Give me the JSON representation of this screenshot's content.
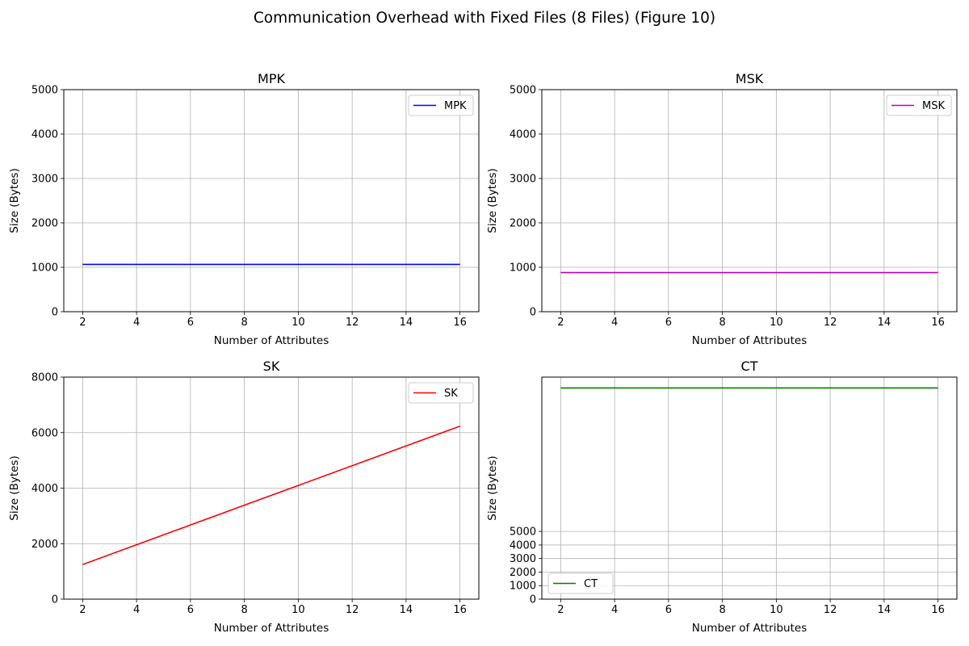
{
  "suptitle": "Communication Overhead with Fixed Files (8 Files) (Figure 10)",
  "chart_data": [
    {
      "type": "line",
      "title": "MPK",
      "xlabel": "Number of Attributes",
      "ylabel": "Size (Bytes)",
      "xlim": [
        1.3,
        16.7
      ],
      "ylim": [
        0,
        5000
      ],
      "xticks": [
        2,
        4,
        6,
        8,
        10,
        12,
        14,
        16
      ],
      "yticks": [
        0,
        1000,
        2000,
        3000,
        4000,
        5000
      ],
      "grid": true,
      "legend_position": "upper right",
      "series": [
        {
          "name": "MPK",
          "color": "#0000ff",
          "x": [
            2,
            4,
            6,
            8,
            10,
            12,
            14,
            16
          ],
          "y": [
            1064,
            1064,
            1064,
            1064,
            1064,
            1064,
            1064,
            1064
          ]
        }
      ]
    },
    {
      "type": "line",
      "title": "MSK",
      "xlabel": "Number of Attributes",
      "ylabel": "Size (Bytes)",
      "xlim": [
        1.3,
        16.7
      ],
      "ylim": [
        0,
        5000
      ],
      "xticks": [
        2,
        4,
        6,
        8,
        10,
        12,
        14,
        16
      ],
      "yticks": [
        0,
        1000,
        2000,
        3000,
        4000,
        5000
      ],
      "grid": true,
      "legend_position": "upper right",
      "series": [
        {
          "name": "MSK",
          "color": "#bf00bf",
          "x": [
            2,
            4,
            6,
            8,
            10,
            12,
            14,
            16
          ],
          "y": [
            880,
            880,
            880,
            880,
            880,
            880,
            880,
            880
          ]
        }
      ]
    },
    {
      "type": "line",
      "title": "SK",
      "xlabel": "Number of Attributes",
      "ylabel": "Size (Bytes)",
      "xlim": [
        1.3,
        16.7
      ],
      "ylim": [
        0,
        8000
      ],
      "xticks": [
        2,
        4,
        6,
        8,
        10,
        12,
        14,
        16
      ],
      "yticks": [
        0,
        2000,
        4000,
        6000,
        8000
      ],
      "grid": true,
      "legend_position": "upper right",
      "series": [
        {
          "name": "SK",
          "color": "#ff0000",
          "x": [
            2,
            4,
            6,
            8,
            10,
            12,
            14,
            16
          ],
          "y": [
            1248,
            1960,
            2672,
            3384,
            4096,
            4808,
            5520,
            6232
          ]
        }
      ]
    },
    {
      "type": "line",
      "title": "CT",
      "xlabel": "Number of Attributes",
      "ylabel": "Size (Bytes)",
      "xlim": [
        1.3,
        16.7
      ],
      "ylim": [
        0,
        16400
      ],
      "xticks": [
        2,
        4,
        6,
        8,
        10,
        12,
        14,
        16
      ],
      "yticks": [
        0,
        1000,
        2000,
        3000,
        4000,
        5000
      ],
      "grid": true,
      "legend_position": "lower left",
      "series": [
        {
          "name": "CT",
          "color": "#008000",
          "x": [
            2,
            4,
            6,
            8,
            10,
            12,
            14,
            16
          ],
          "y": [
            15600,
            15600,
            15600,
            15600,
            15600,
            15600,
            15600,
            15600
          ]
        }
      ]
    }
  ]
}
